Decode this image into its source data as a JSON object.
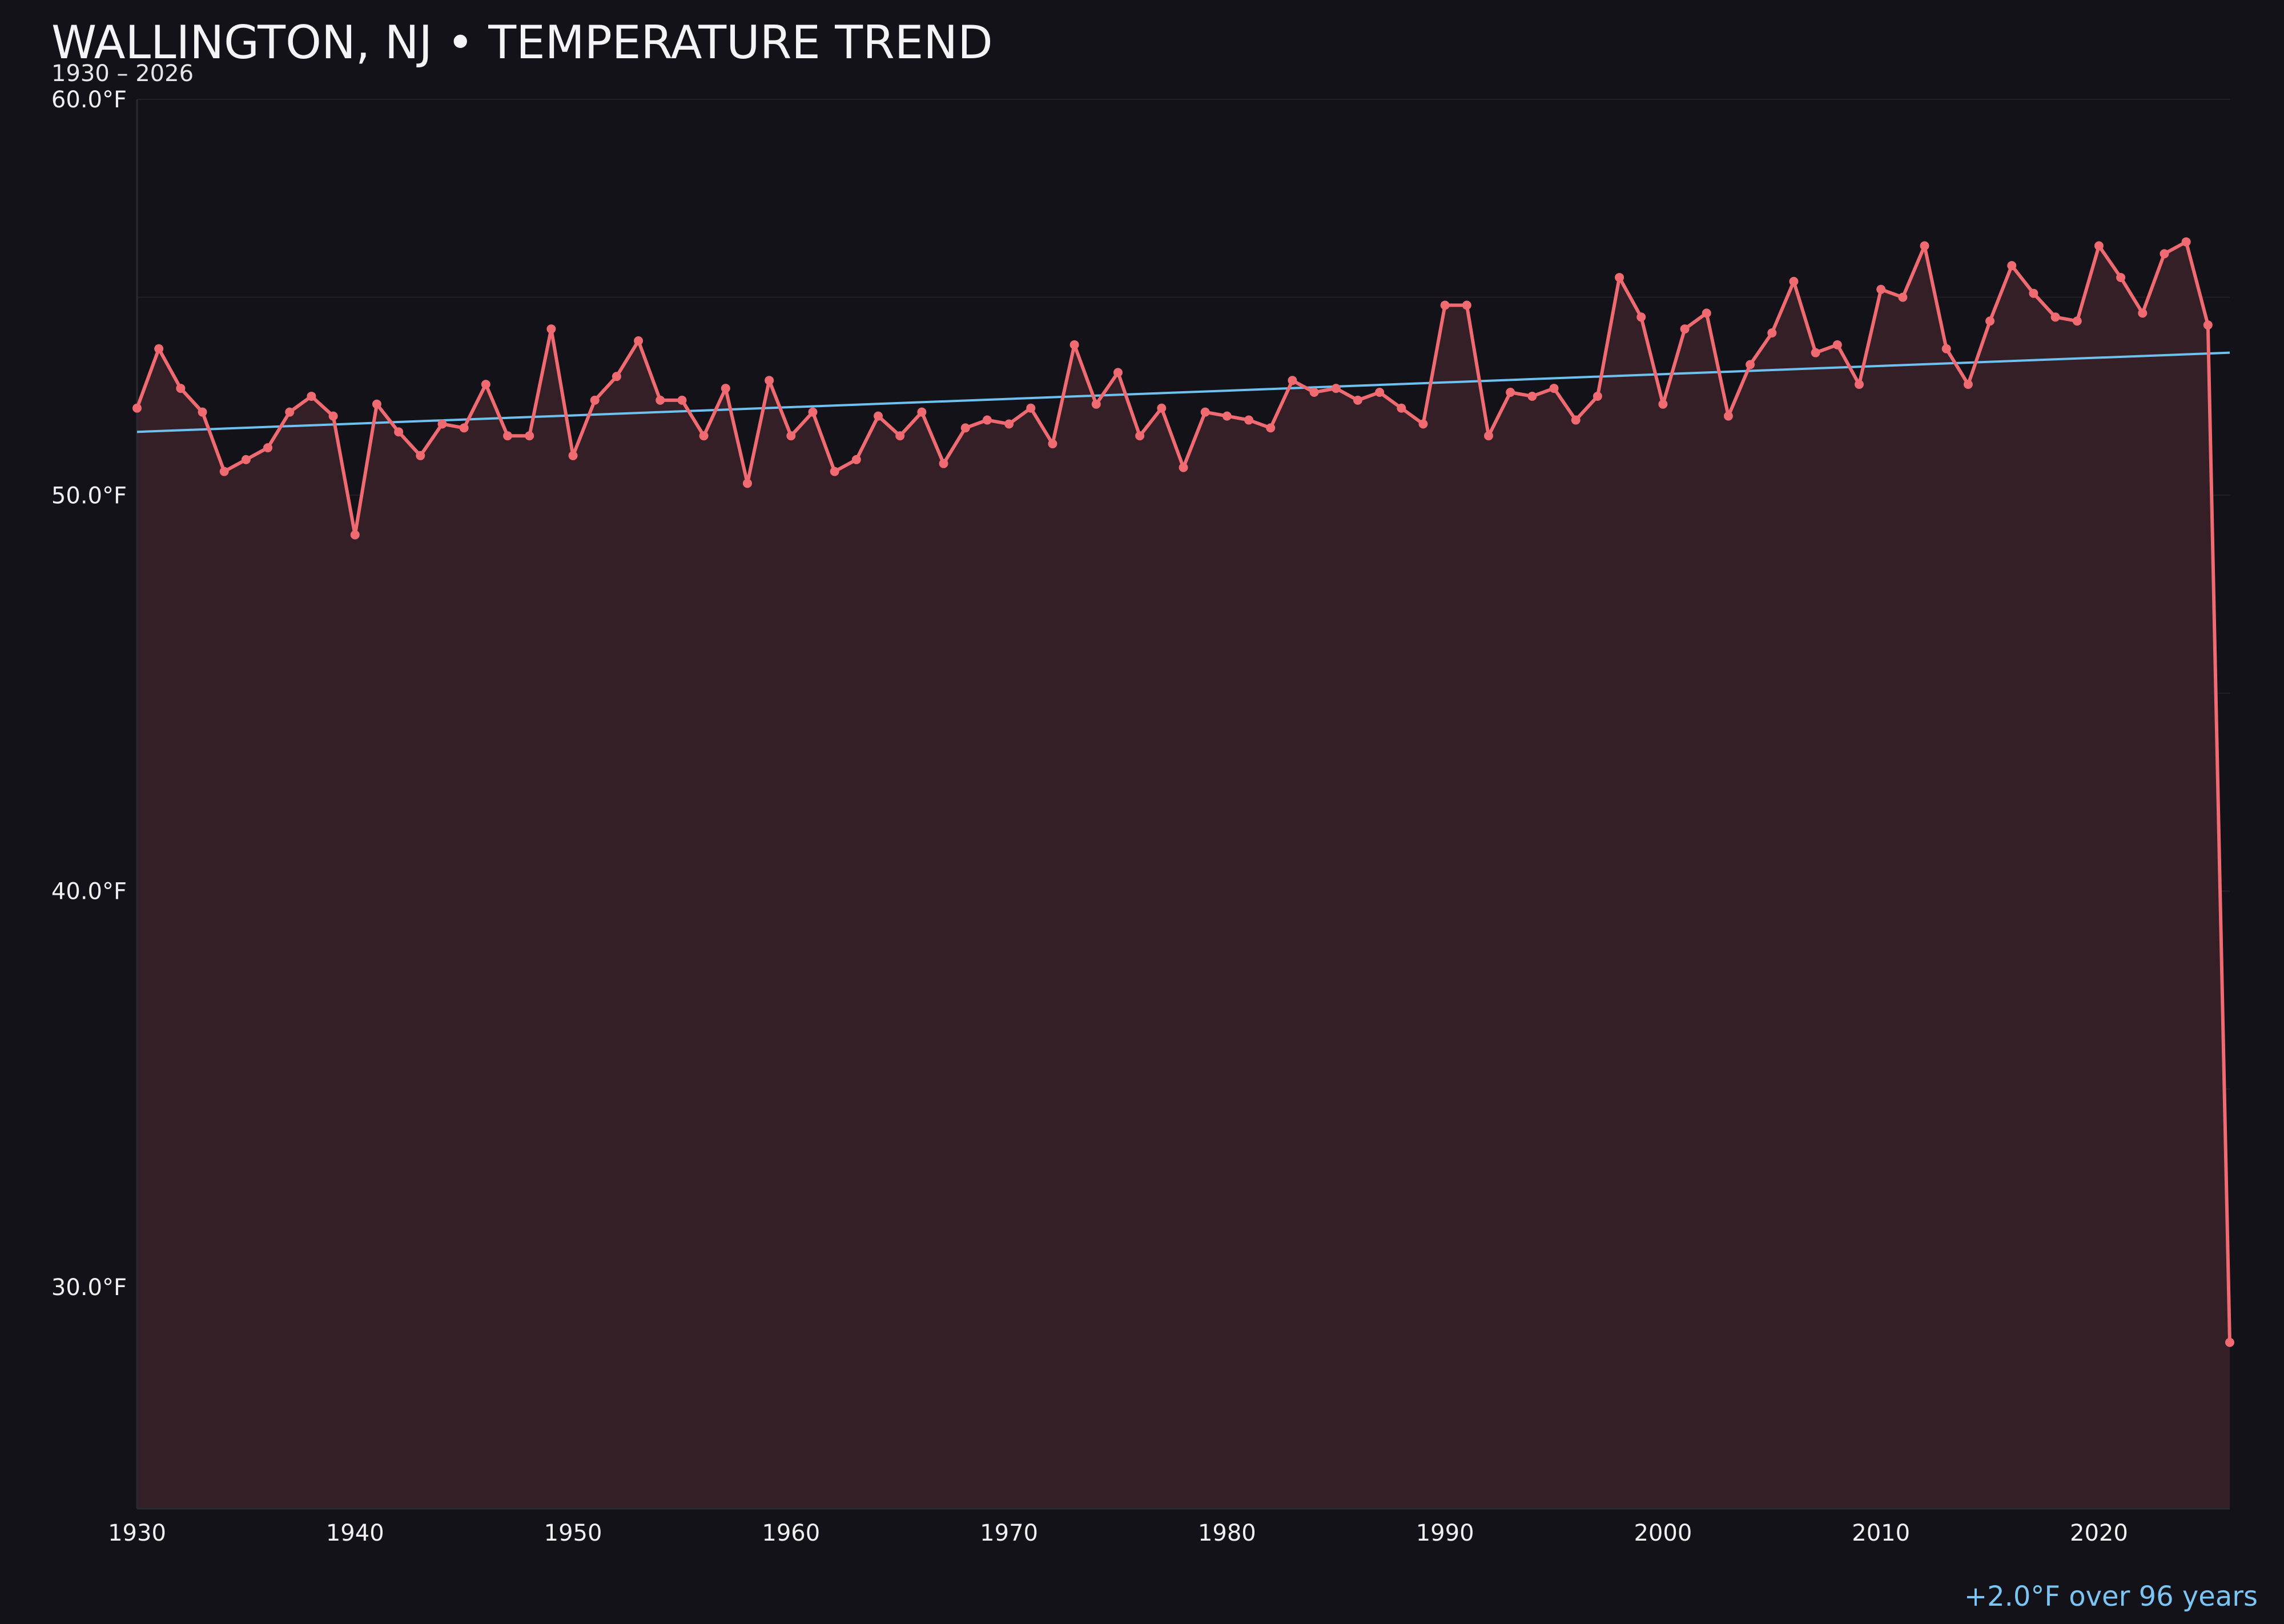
{
  "title": "WALLINGTON, NJ • TEMPERATURE TREND",
  "subtitle": "1930 – 2026",
  "trend_note": "+2.0°F over 96 years",
  "colors": {
    "background": "#121218",
    "series": "#f06a72",
    "area": "#351f26",
    "trend": "#6ec0f0",
    "grid": "#261e25"
  },
  "chart_data": {
    "type": "line",
    "xlim": [
      1930,
      2026
    ],
    "ylim": [
      24.4,
      60.0
    ],
    "y_ticks": [
      30.0,
      40.0,
      50.0,
      60.0
    ],
    "y_tick_labels": [
      "30.0°F",
      "40.0°F",
      "50.0°F",
      "60.0°F"
    ],
    "x_ticks": [
      1930,
      1940,
      1950,
      1960,
      1970,
      1980,
      1990,
      2000,
      2010,
      2020
    ],
    "x_tick_labels": [
      "1930",
      "1940",
      "1950",
      "1960",
      "1970",
      "1980",
      "1990",
      "2000",
      "2010",
      "2020"
    ],
    "grid": true,
    "series": [
      {
        "x": [
          1930,
          1931,
          1932,
          1933,
          1934,
          1935,
          1936,
          1937,
          1938,
          1939,
          1940,
          1941,
          1942,
          1943,
          1944,
          1945,
          1946,
          1947,
          1948,
          1949,
          1950,
          1951,
          1952,
          1953,
          1954,
          1955,
          1956,
          1957,
          1958,
          1959,
          1960,
          1961,
          1962,
          1963,
          1964,
          1965,
          1966,
          1967,
          1968,
          1969,
          1970,
          1971,
          1972,
          1973,
          1974,
          1975,
          1976,
          1977,
          1978,
          1979,
          1980,
          1981,
          1982,
          1983,
          1984,
          1985,
          1986,
          1987,
          1988,
          1989,
          1990,
          1991,
          1992,
          1993,
          1994,
          1995,
          1996,
          1997,
          1998,
          1999,
          2000,
          2001,
          2002,
          2003,
          2004,
          2005,
          2006,
          2007,
          2008,
          2009,
          2010,
          2011,
          2012,
          2013,
          2014,
          2015,
          2016,
          2017,
          2018,
          2019,
          2020,
          2021,
          2022,
          2023,
          2024,
          2025,
          2026
        ],
        "values": [
          52.2,
          53.7,
          52.7,
          52.1,
          50.6,
          50.9,
          51.2,
          52.1,
          52.5,
          52.0,
          49.0,
          52.3,
          51.6,
          51.0,
          51.8,
          51.7,
          52.8,
          51.5,
          51.5,
          54.2,
          51.0,
          52.4,
          53.0,
          53.9,
          52.4,
          52.4,
          51.5,
          52.7,
          50.3,
          52.9,
          51.5,
          52.1,
          50.6,
          50.9,
          52.0,
          51.5,
          52.1,
          50.8,
          51.7,
          51.9,
          51.8,
          52.2,
          51.3,
          53.8,
          52.3,
          53.1,
          51.5,
          52.2,
          50.7,
          52.1,
          52.0,
          51.9,
          51.7,
          52.9,
          52.6,
          52.7,
          52.4,
          52.6,
          52.2,
          51.8,
          54.8,
          54.8,
          51.5,
          52.6,
          52.5,
          52.7,
          51.9,
          52.5,
          55.5,
          54.5,
          52.3,
          54.2,
          54.6,
          52.0,
          53.3,
          54.1,
          55.4,
          53.6,
          53.8,
          52.8,
          55.2,
          55.0,
          56.3,
          53.7,
          52.8,
          54.4,
          55.8,
          55.1,
          54.5,
          54.4,
          56.3,
          55.5,
          54.6,
          56.1,
          56.4,
          54.3,
          28.6
        ]
      }
    ],
    "trend": {
      "x": [
        1930,
        2026
      ],
      "values": [
        51.6,
        53.6
      ]
    }
  }
}
